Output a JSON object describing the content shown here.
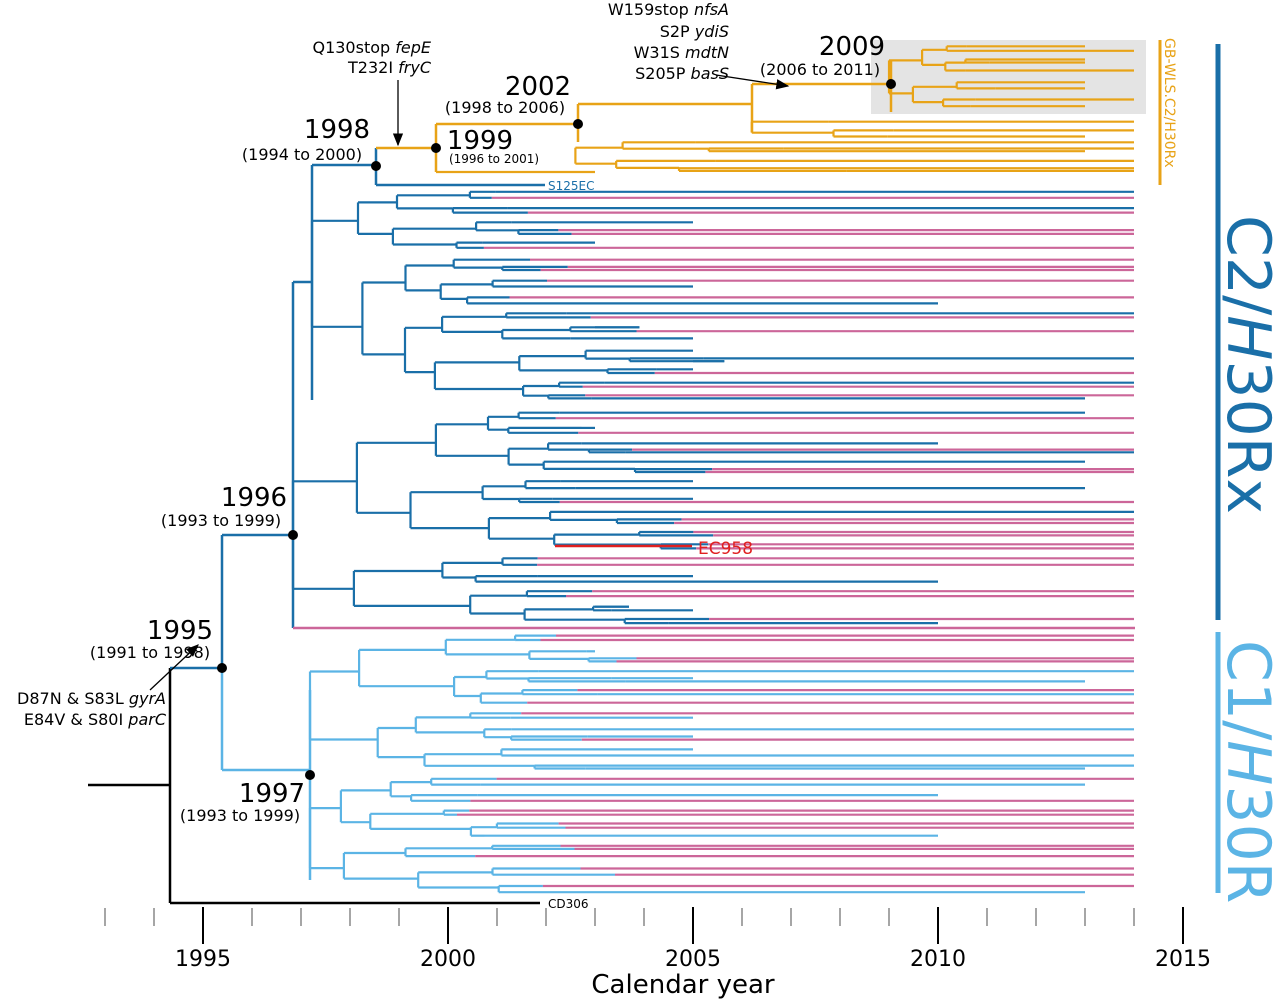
{
  "colors": {
    "root": "#000000",
    "c2": "#1a6fa8",
    "c1": "#5bb4e5",
    "gb": "#e8a317",
    "other": "#cc6699",
    "highlight": "#e02020",
    "shade": "#e4e4e4",
    "axis": "#888888"
  },
  "nodes": [
    {
      "year": "1998",
      "range": "(1994 to 2000)"
    },
    {
      "year": "1999",
      "range": "(1996 to 2001)"
    },
    {
      "year": "2002",
      "range": "(1998 to 2006)"
    },
    {
      "year": "2009",
      "range": "(2006 to 2011)"
    },
    {
      "year": "1996",
      "range": "(1993 to 1999)"
    },
    {
      "year": "1995",
      "range": "(1991 to 1998)"
    },
    {
      "year": "1997",
      "range": "(1993 to 1999)"
    }
  ],
  "mutations": {
    "gb_lines": [
      {
        "mut": "W159stop",
        "gene": "nfsA"
      },
      {
        "mut": "S2P",
        "gene": "ydiS"
      },
      {
        "mut": "W31S",
        "gene": "mdtN"
      },
      {
        "mut": "S205P",
        "gene": "basS"
      }
    ],
    "c2_lines": [
      {
        "mut": "Q130stop",
        "gene": "fepE"
      },
      {
        "mut": "T232I",
        "gene": "fryC"
      }
    ],
    "root_lines": [
      {
        "mut": "D87N & S83L",
        "gene": "gyrA"
      },
      {
        "mut": "E84V & S80I",
        "gene": "parC"
      }
    ]
  },
  "taxa": {
    "s125ec": "S125EC",
    "ec958": "EC958",
    "cd306": "CD306"
  },
  "clades": {
    "c2": "C2/H30Rx",
    "c2_prefix": "C2/",
    "c2_italic": "H",
    "c2_suffix": "30Rx",
    "c1": "C1/H30R",
    "c1_prefix": "C1/",
    "c1_italic": "H",
    "c1_suffix": "30R",
    "gb": "GB-WLS.C2/H30Rx"
  },
  "axis": {
    "label": "Calendar year",
    "ticks": [
      "1995",
      "2000",
      "2005",
      "2010",
      "2015"
    ],
    "range": [
      1993,
      2015
    ]
  }
}
